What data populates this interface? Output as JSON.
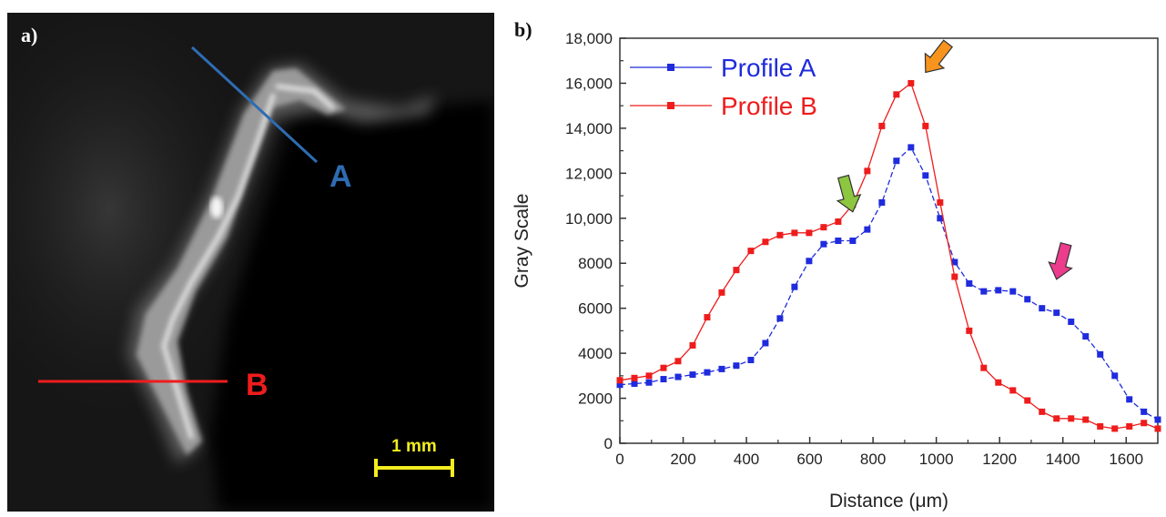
{
  "panel_a": {
    "label": "a)",
    "profile_a_label": "A",
    "profile_b_label": "B",
    "scale_bar_text": "1 mm",
    "profile_a_color": "#2e6cb3",
    "profile_b_color": "#ee1c1c",
    "scale_bar_color": "#f2ee1e"
  },
  "panel_b": {
    "label": "b)"
  },
  "chart_data": {
    "type": "line",
    "title": "",
    "xlabel": "Distance (μm)",
    "ylabel": "Gray Scale",
    "xlim": [
      0,
      1700
    ],
    "ylim": [
      0,
      18000
    ],
    "x_ticks": [
      0,
      200,
      400,
      600,
      800,
      1000,
      1200,
      1400,
      1600
    ],
    "x_tick_labels": [
      "0",
      "200",
      "400",
      "600",
      "800",
      "1000",
      "1200",
      "1400",
      "1600"
    ],
    "y_ticks": [
      0,
      2000,
      4000,
      6000,
      8000,
      10000,
      12000,
      14000,
      16000,
      18000
    ],
    "y_tick_labels": [
      "0",
      "2000",
      "4000",
      "6000",
      "8000",
      "10,000",
      "12,000",
      "14,000",
      "16,000",
      "18,000"
    ],
    "grid": false,
    "legend_position": "top-left",
    "series": [
      {
        "name": "Profile A",
        "color": "#1f2bdc",
        "dash": "dashed",
        "x": [
          0,
          46,
          92,
          138,
          184,
          230,
          276,
          322,
          368,
          414,
          460,
          506,
          552,
          598,
          644,
          690,
          736,
          782,
          828,
          874,
          920,
          966,
          1012,
          1058,
          1104,
          1150,
          1196,
          1242,
          1288,
          1334,
          1380,
          1426,
          1472,
          1518,
          1564,
          1610,
          1656,
          1700
        ],
        "y": [
          2600,
          2650,
          2700,
          2850,
          2950,
          3050,
          3150,
          3300,
          3450,
          3700,
          4450,
          5550,
          6950,
          8100,
          8850,
          9000,
          9000,
          9500,
          10700,
          12550,
          13150,
          11900,
          10000,
          8050,
          7100,
          6750,
          6800,
          6750,
          6400,
          6000,
          5800,
          5400,
          4750,
          3950,
          3000,
          1950,
          1400,
          1050
        ]
      },
      {
        "name": "Profile B",
        "color": "#ee1c1c",
        "dash": "solid",
        "x": [
          0,
          46,
          92,
          138,
          184,
          230,
          276,
          322,
          368,
          414,
          460,
          506,
          552,
          598,
          644,
          690,
          736,
          782,
          828,
          874,
          920,
          966,
          1012,
          1058,
          1104,
          1150,
          1196,
          1242,
          1288,
          1334,
          1380,
          1426,
          1472,
          1518,
          1564,
          1610,
          1656,
          1700
        ],
        "y": [
          2800,
          2900,
          3000,
          3350,
          3650,
          4350,
          5600,
          6700,
          7700,
          8550,
          8950,
          9250,
          9350,
          9350,
          9600,
          9850,
          10600,
          12100,
          14100,
          15500,
          16000,
          14100,
          10700,
          7400,
          5000,
          3350,
          2700,
          2350,
          1900,
          1400,
          1100,
          1100,
          1050,
          750,
          650,
          750,
          900,
          650
        ]
      }
    ],
    "annotations": [
      {
        "type": "arrow",
        "color": "#f7941d",
        "points_to_x": 920,
        "points_to_y": 16000
      },
      {
        "type": "arrow",
        "color": "#8dc63f",
        "points_to_x": 690,
        "points_to_y": 9800
      },
      {
        "type": "arrow",
        "color": "#ec3c8c",
        "points_to_x": 1334,
        "points_to_y": 6800
      }
    ]
  }
}
